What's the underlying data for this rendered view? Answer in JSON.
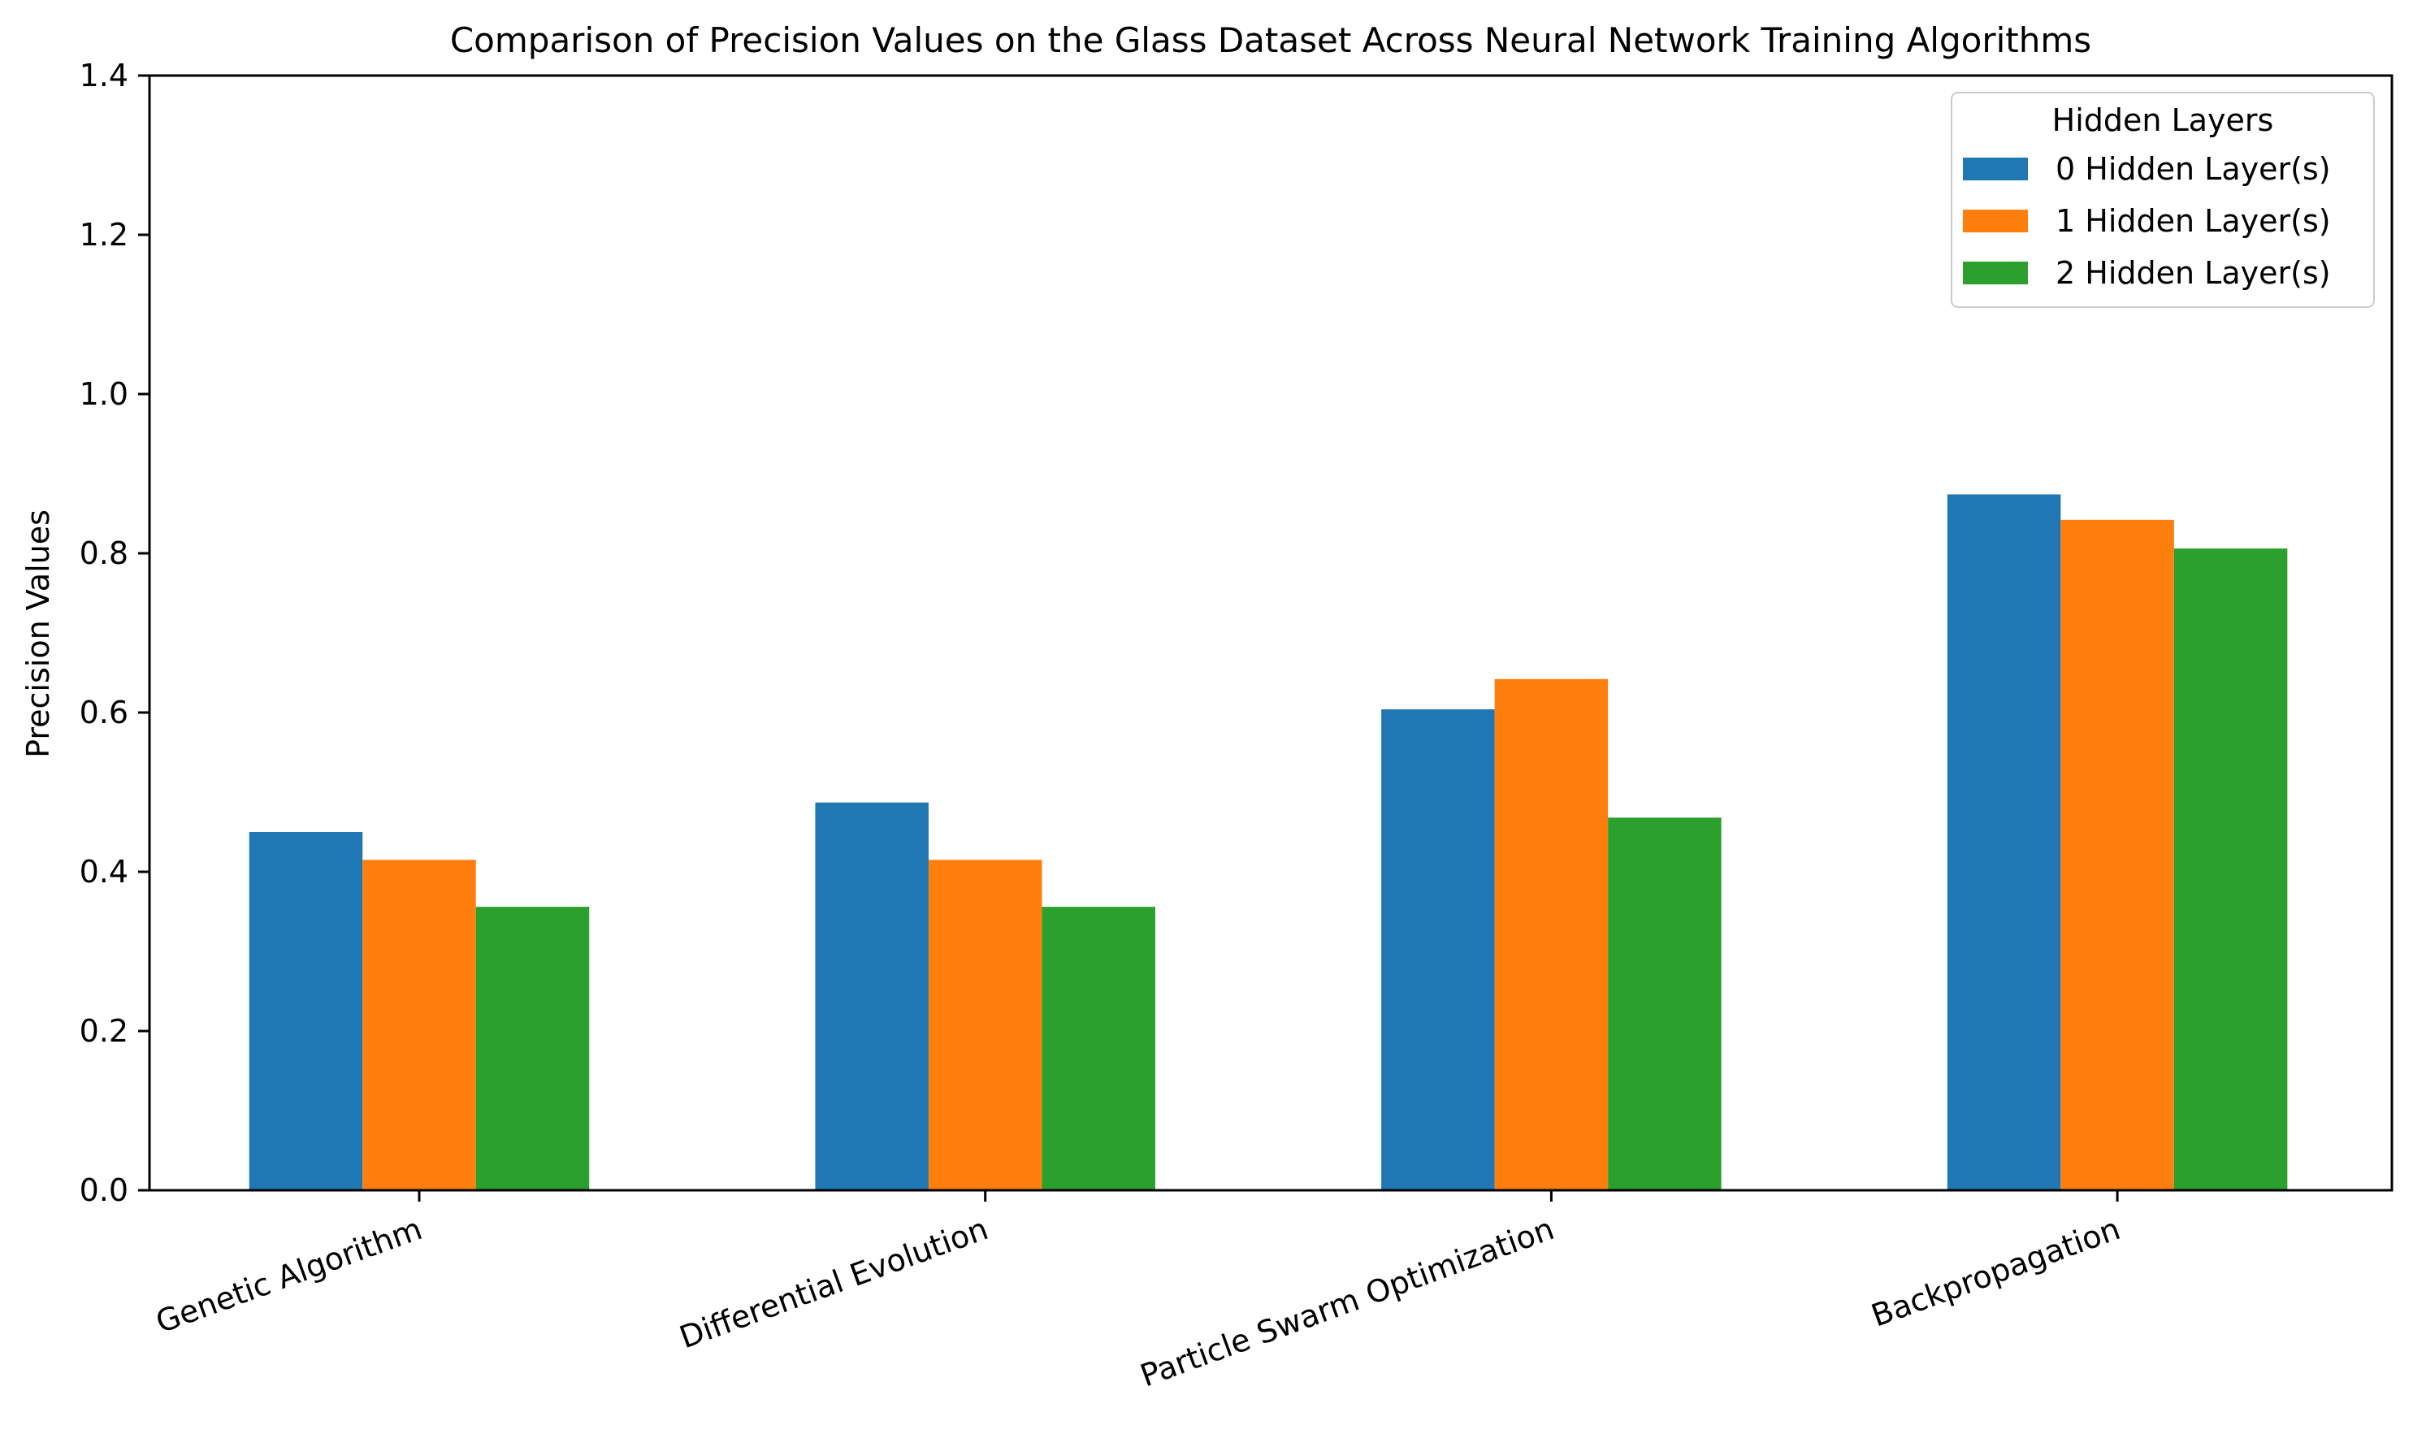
{
  "chart_data": {
    "type": "bar",
    "title": "Comparison of Precision Values on the Glass Dataset Across Neural Network Training Algorithms",
    "xlabel": "",
    "ylabel": "Precision Values",
    "categories": [
      "Genetic Algorithm",
      "Differential Evolution",
      "Particle Swarm Optimization",
      "Backpropagation"
    ],
    "series": [
      {
        "name": "0 Hidden Layer(s)",
        "color": "#1f77b4",
        "values": [
          0.45,
          0.487,
          0.604,
          0.874
        ]
      },
      {
        "name": "1 Hidden Layer(s)",
        "color": "#ff7f0e",
        "values": [
          0.415,
          0.415,
          0.642,
          0.842
        ]
      },
      {
        "name": "2 Hidden Layer(s)",
        "color": "#2ca02c",
        "values": [
          0.356,
          0.356,
          0.468,
          0.806
        ]
      }
    ],
    "ylim": [
      0,
      1.4
    ],
    "yticks": [
      "0.0",
      "0.2",
      "0.4",
      "0.6",
      "0.8",
      "1.0",
      "1.2",
      "1.4"
    ],
    "grid": false,
    "legend": {
      "title": "Hidden Layers",
      "position": "top-right"
    }
  }
}
